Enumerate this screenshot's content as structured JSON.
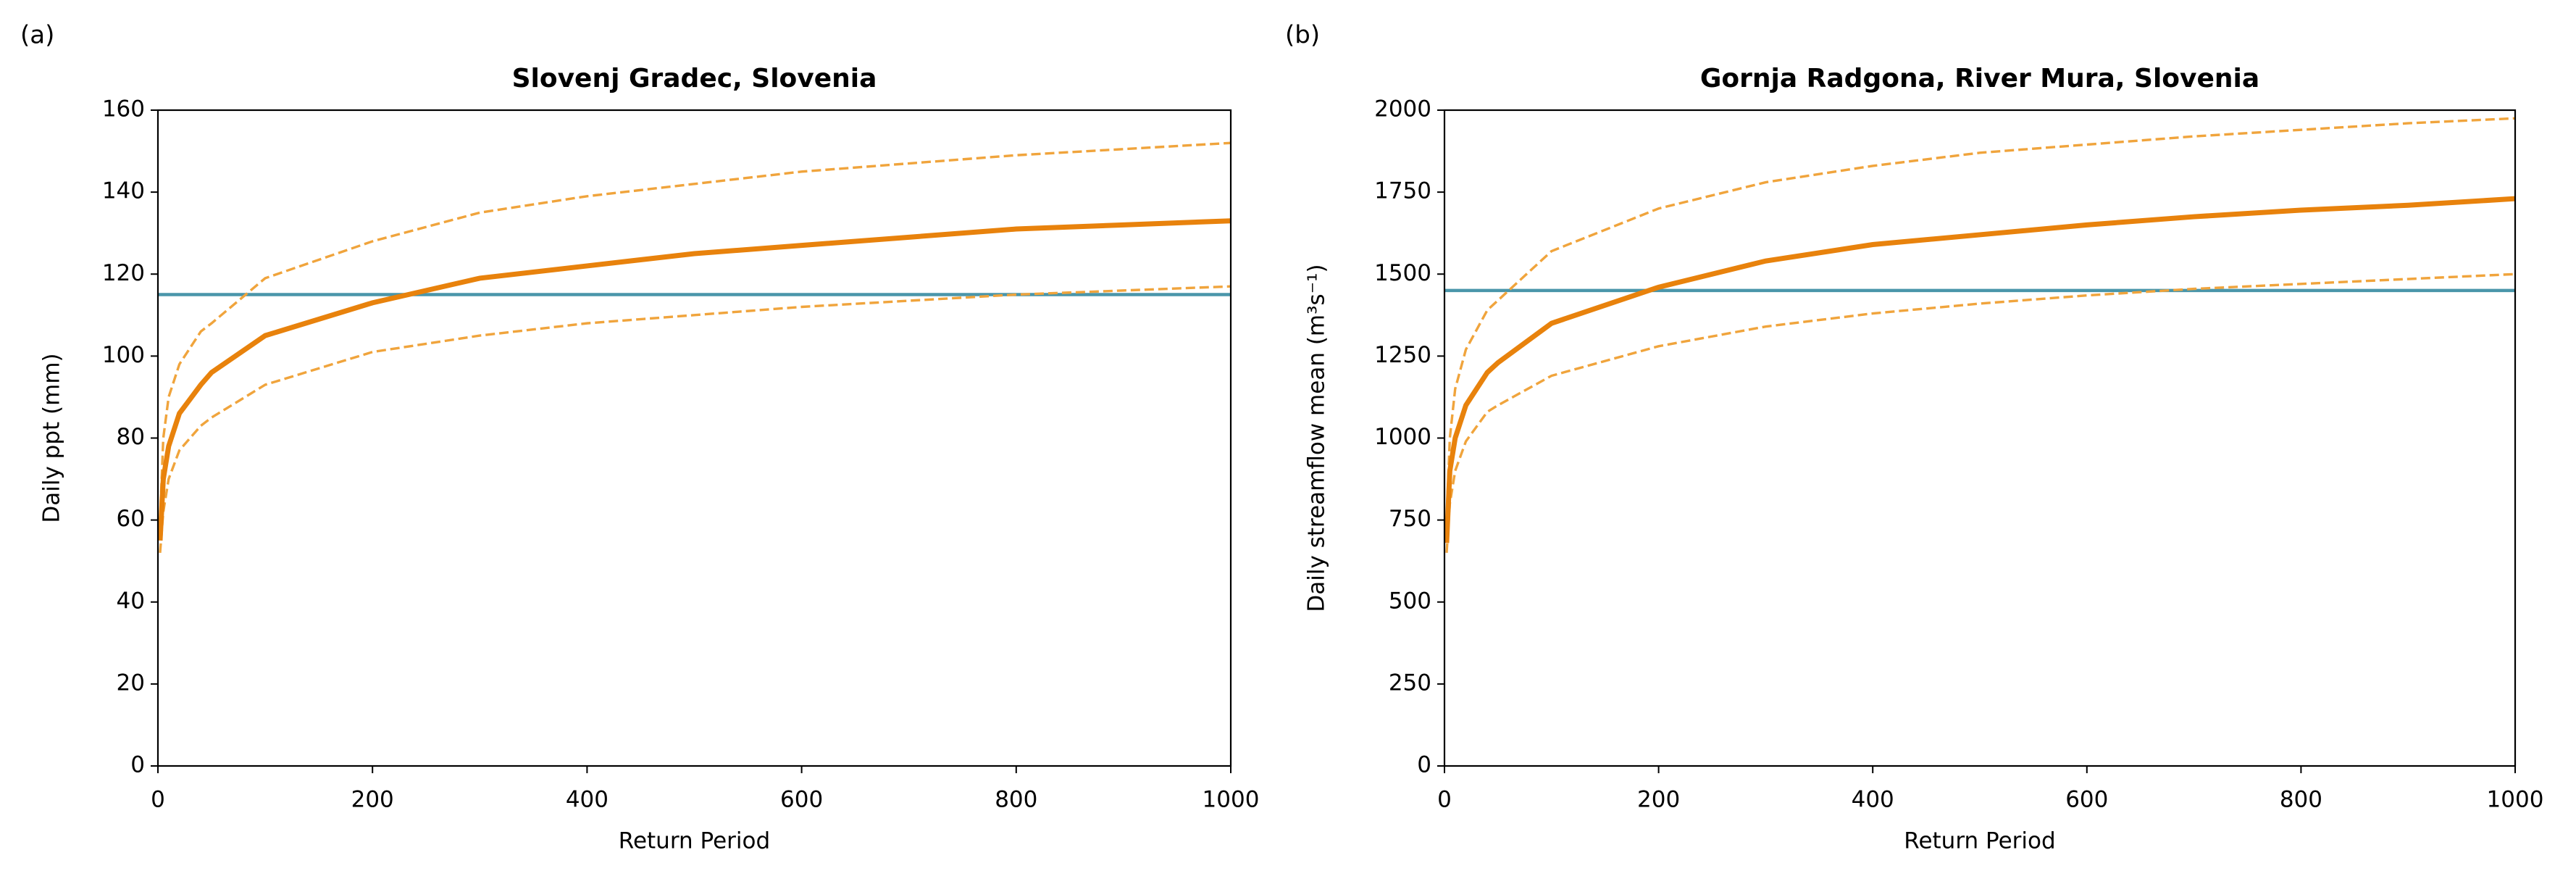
{
  "chart_data": [
    {
      "type": "line",
      "panel_label": "(a)",
      "title": "Slovenj Gradec, Slovenia",
      "x_label": "Return Period",
      "y_label": "Daily ppt (mm)",
      "x": [
        2,
        5,
        10,
        20,
        40,
        50,
        100,
        200,
        300,
        400,
        500,
        600,
        700,
        800,
        900,
        1000
      ],
      "series": [
        {
          "color": "#f0a43c",
          "linestyle": "dashed",
          "values": [
            60,
            80,
            90,
            98,
            106,
            108,
            119,
            128,
            135,
            139,
            142,
            145,
            147,
            149,
            150.5,
            152
          ]
        },
        {
          "color": "#f0a43c",
          "linestyle": "dashed",
          "values": [
            52,
            62,
            70,
            77,
            83,
            85,
            93,
            101,
            105,
            108,
            110,
            112,
            113.5,
            115,
            116,
            117
          ]
        },
        {
          "color": "#e8820c",
          "linestyle": "solid",
          "values": [
            55,
            70,
            78,
            86,
            93,
            96,
            105,
            113,
            119,
            122,
            125,
            127,
            129,
            131,
            132,
            133
          ]
        }
      ],
      "hlines": [
        {
          "value": 115,
          "color": "#4a96aa"
        }
      ],
      "xlim": [
        0,
        1000
      ],
      "xticks": [
        0,
        200,
        400,
        600,
        800,
        1000
      ],
      "ylim": [
        0,
        160
      ],
      "yticks": [
        0,
        20,
        40,
        60,
        80,
        100,
        120,
        140,
        160
      ]
    },
    {
      "type": "line",
      "panel_label": "(b)",
      "title": "Gornja Radgona, River Mura, Slovenia",
      "x_label": "Return Period",
      "y_label": "Daily streamflow mean (m³s⁻¹)",
      "x": [
        2,
        5,
        10,
        20,
        40,
        50,
        100,
        200,
        300,
        400,
        500,
        600,
        700,
        800,
        900,
        1000
      ],
      "series": [
        {
          "color": "#f0a43c",
          "linestyle": "dashed",
          "values": [
            750,
            1000,
            1150,
            1270,
            1390,
            1420,
            1570,
            1700,
            1780,
            1830,
            1870,
            1895,
            1920,
            1940,
            1960,
            1975
          ]
        },
        {
          "color": "#f0a43c",
          "linestyle": "dashed",
          "values": [
            650,
            800,
            900,
            990,
            1080,
            1100,
            1190,
            1280,
            1340,
            1380,
            1410,
            1435,
            1455,
            1470,
            1485,
            1500
          ]
        },
        {
          "color": "#e8820c",
          "linestyle": "solid",
          "values": [
            680,
            900,
            1000,
            1100,
            1200,
            1230,
            1350,
            1460,
            1540,
            1590,
            1620,
            1650,
            1675,
            1695,
            1710,
            1730
          ]
        }
      ],
      "hlines": [
        {
          "value": 1450,
          "color": "#4a96aa"
        }
      ],
      "xlim": [
        0,
        1000
      ],
      "xticks": [
        0,
        200,
        400,
        600,
        800,
        1000
      ],
      "ylim": [
        0,
        2000
      ],
      "yticks": [
        0,
        250,
        500,
        750,
        1000,
        1250,
        1500,
        1750,
        2000
      ]
    }
  ]
}
